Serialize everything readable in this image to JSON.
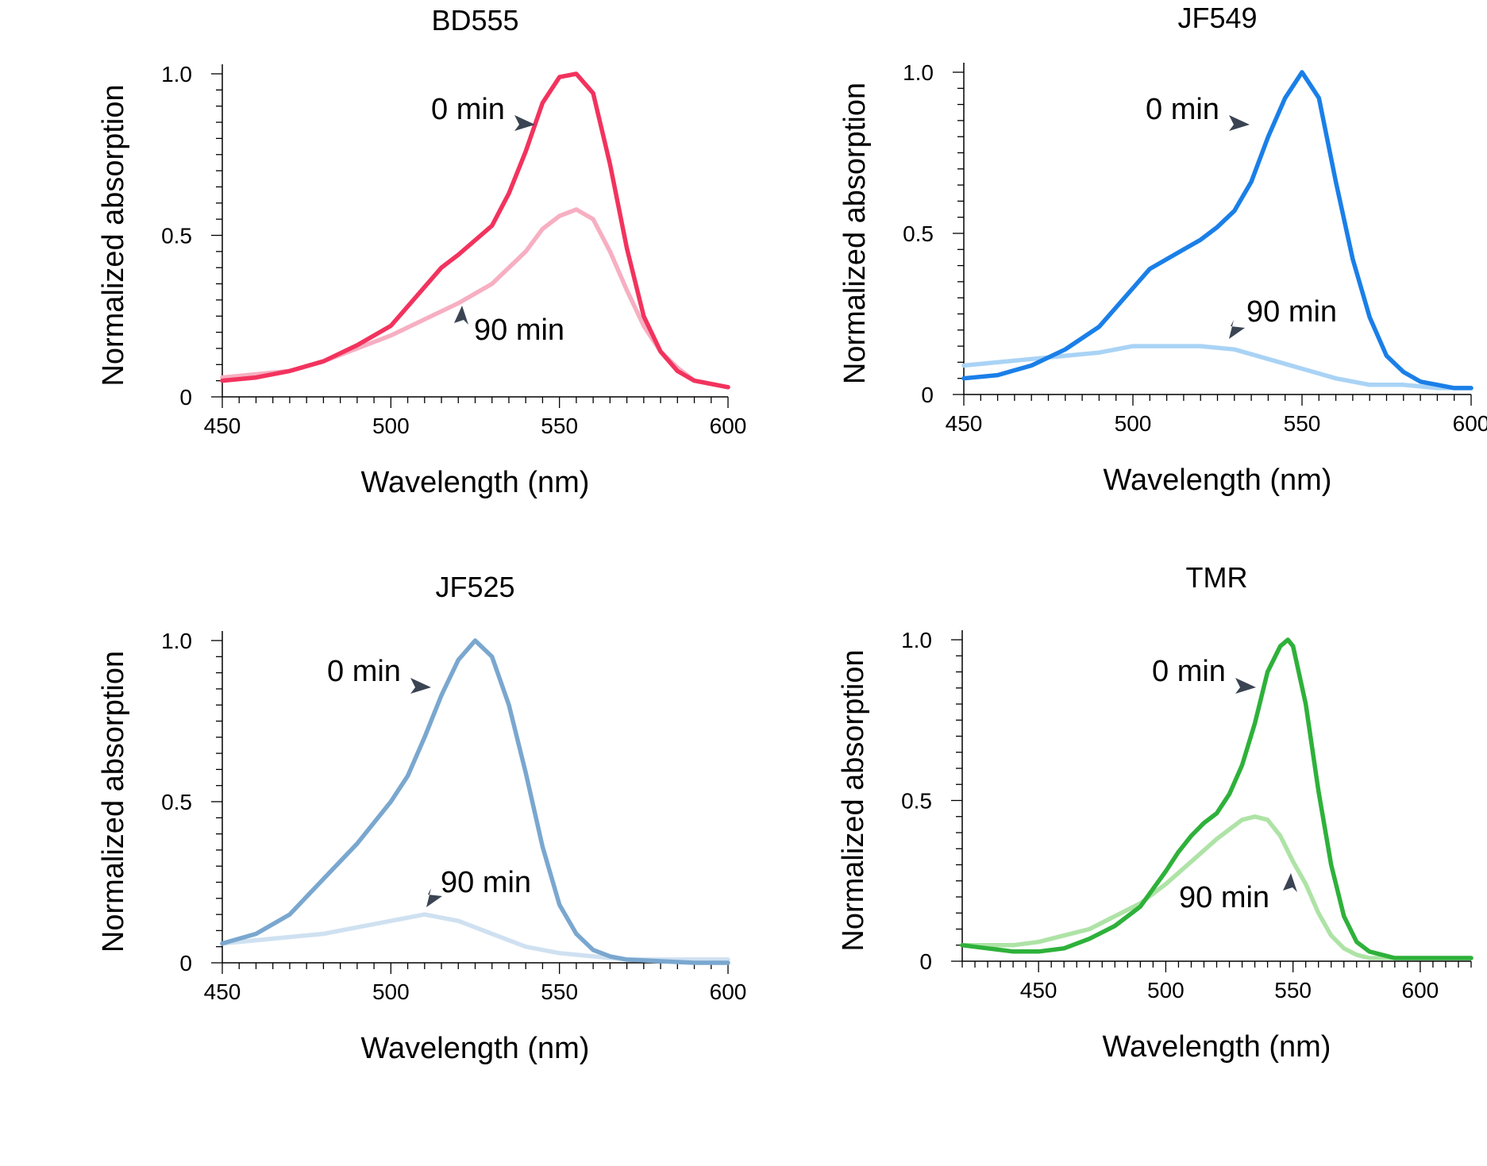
{
  "chart_data": [
    {
      "type": "line",
      "title": "BD555",
      "xlabel": "Wavelength (nm)",
      "ylabel": "Normalized absorption",
      "xlim": [
        450,
        600
      ],
      "ylim": [
        0,
        1.0
      ],
      "xticks": [
        450,
        500,
        550,
        600
      ],
      "xtick_labels": [
        "450",
        "500",
        "550",
        "600"
      ],
      "yticks": [
        0,
        0.5,
        1.0
      ],
      "ytick_labels": [
        "0",
        "0.5",
        "1.0"
      ],
      "grid": false,
      "series": [
        {
          "name": "0 min",
          "color": "#f2335e",
          "x": [
            450,
            460,
            470,
            480,
            490,
            500,
            510,
            515,
            520,
            530,
            535,
            540,
            545,
            550,
            555,
            560,
            565,
            570,
            575,
            580,
            585,
            590,
            595,
            600
          ],
          "y": [
            0.05,
            0.06,
            0.08,
            0.11,
            0.16,
            0.22,
            0.34,
            0.4,
            0.44,
            0.53,
            0.63,
            0.76,
            0.91,
            0.99,
            1.0,
            0.94,
            0.72,
            0.46,
            0.25,
            0.14,
            0.08,
            0.05,
            0.04,
            0.03
          ],
          "annotation": "0 min"
        },
        {
          "name": "90 min",
          "color": "#f7afc2",
          "x": [
            450,
            460,
            470,
            480,
            490,
            500,
            510,
            520,
            530,
            540,
            545,
            550,
            555,
            560,
            565,
            570,
            575,
            580,
            585,
            590,
            595,
            600
          ],
          "y": [
            0.06,
            0.07,
            0.08,
            0.11,
            0.15,
            0.19,
            0.24,
            0.29,
            0.35,
            0.45,
            0.52,
            0.56,
            0.58,
            0.55,
            0.45,
            0.33,
            0.22,
            0.14,
            0.09,
            0.05,
            0.04,
            0.03
          ],
          "annotation": "90 min"
        }
      ]
    },
    {
      "type": "line",
      "title": "JF549",
      "xlabel": "Wavelength (nm)",
      "ylabel": "Normalized absorption",
      "xlim": [
        450,
        600
      ],
      "ylim": [
        0,
        1.0
      ],
      "xticks": [
        450,
        500,
        550,
        600
      ],
      "xtick_labels": [
        "450",
        "500",
        "550",
        "600"
      ],
      "yticks": [
        0,
        0.5,
        1.0
      ],
      "ytick_labels": [
        "0",
        "0.5",
        "1.0"
      ],
      "grid": false,
      "series": [
        {
          "name": "0 min",
          "color": "#1a7fe8",
          "x": [
            450,
            460,
            470,
            480,
            490,
            500,
            505,
            510,
            515,
            520,
            525,
            530,
            535,
            540,
            545,
            550,
            555,
            560,
            565,
            570,
            575,
            580,
            585,
            590,
            595,
            600
          ],
          "y": [
            0.05,
            0.06,
            0.09,
            0.14,
            0.21,
            0.33,
            0.39,
            0.42,
            0.45,
            0.48,
            0.52,
            0.57,
            0.66,
            0.8,
            0.92,
            1.0,
            0.92,
            0.66,
            0.42,
            0.24,
            0.12,
            0.07,
            0.04,
            0.03,
            0.02,
            0.02
          ],
          "annotation": "0 min"
        },
        {
          "name": "90 min",
          "color": "#a9d3f5",
          "x": [
            450,
            460,
            470,
            480,
            490,
            500,
            510,
            520,
            530,
            540,
            550,
            560,
            570,
            580,
            590,
            600
          ],
          "y": [
            0.09,
            0.1,
            0.11,
            0.12,
            0.13,
            0.15,
            0.15,
            0.15,
            0.14,
            0.11,
            0.08,
            0.05,
            0.03,
            0.03,
            0.02,
            0.02
          ],
          "annotation": "90 min"
        }
      ]
    },
    {
      "type": "line",
      "title": "JF525",
      "xlabel": "Wavelength (nm)",
      "ylabel": "Normalized absorption",
      "xlim": [
        450,
        600
      ],
      "ylim": [
        0,
        1.0
      ],
      "xticks": [
        450,
        500,
        550,
        600
      ],
      "xtick_labels": [
        "450",
        "500",
        "550",
        "600"
      ],
      "yticks": [
        0,
        0.5,
        1.0
      ],
      "ytick_labels": [
        "0",
        "0.5",
        "1.0"
      ],
      "grid": false,
      "series": [
        {
          "name": "0 min",
          "color": "#7aa7cf",
          "x": [
            450,
            460,
            470,
            480,
            490,
            500,
            505,
            510,
            515,
            520,
            525,
            530,
            535,
            540,
            545,
            550,
            555,
            560,
            565,
            570,
            580,
            590,
            600
          ],
          "y": [
            0.06,
            0.09,
            0.15,
            0.26,
            0.37,
            0.5,
            0.58,
            0.7,
            0.83,
            0.94,
            1.0,
            0.95,
            0.8,
            0.59,
            0.36,
            0.18,
            0.09,
            0.04,
            0.02,
            0.01,
            0.005,
            0.0,
            0.0
          ],
          "annotation": "0 min"
        },
        {
          "name": "90 min",
          "color": "#cfe1f1",
          "x": [
            450,
            460,
            470,
            480,
            490,
            500,
            510,
            515,
            520,
            530,
            540,
            550,
            560,
            570,
            580,
            590,
            600
          ],
          "y": [
            0.06,
            0.07,
            0.08,
            0.09,
            0.11,
            0.13,
            0.15,
            0.14,
            0.13,
            0.09,
            0.05,
            0.03,
            0.02,
            0.01,
            0.01,
            0.01,
            0.01
          ],
          "annotation": "90 min"
        }
      ]
    },
    {
      "type": "line",
      "title": "TMR",
      "xlabel": "Wavelength (nm)",
      "ylabel": "Normalized absorption",
      "xlim": [
        420,
        620
      ],
      "ylim": [
        0,
        1.0
      ],
      "xticks": [
        450,
        500,
        550,
        600
      ],
      "xtick_labels": [
        "450",
        "500",
        "550",
        "600"
      ],
      "yticks": [
        0,
        0.5,
        1.0
      ],
      "ytick_labels": [
        "0",
        "0.5",
        "1.0"
      ],
      "grid": false,
      "series": [
        {
          "name": "0 min",
          "color": "#2eb13a",
          "x": [
            420,
            430,
            440,
            450,
            460,
            470,
            480,
            490,
            500,
            505,
            510,
            515,
            520,
            525,
            530,
            535,
            540,
            545,
            548,
            550,
            555,
            560,
            565,
            570,
            575,
            580,
            590,
            600,
            610,
            620
          ],
          "y": [
            0.05,
            0.04,
            0.03,
            0.03,
            0.04,
            0.07,
            0.11,
            0.17,
            0.28,
            0.34,
            0.39,
            0.43,
            0.46,
            0.52,
            0.61,
            0.74,
            0.9,
            0.98,
            1.0,
            0.98,
            0.8,
            0.53,
            0.3,
            0.14,
            0.06,
            0.03,
            0.01,
            0.01,
            0.01,
            0.01
          ],
          "annotation": "0 min"
        },
        {
          "name": "90 min",
          "color": "#aee3a6",
          "x": [
            420,
            430,
            440,
            450,
            460,
            470,
            480,
            490,
            500,
            510,
            520,
            530,
            535,
            540,
            545,
            550,
            555,
            560,
            565,
            570,
            575,
            580,
            590,
            600,
            610,
            620
          ],
          "y": [
            0.05,
            0.05,
            0.05,
            0.06,
            0.08,
            0.1,
            0.14,
            0.18,
            0.24,
            0.31,
            0.38,
            0.44,
            0.45,
            0.44,
            0.39,
            0.31,
            0.24,
            0.15,
            0.08,
            0.04,
            0.02,
            0.01,
            0.01,
            0.01,
            0.01,
            0.01
          ],
          "annotation": "90 min"
        }
      ]
    }
  ]
}
